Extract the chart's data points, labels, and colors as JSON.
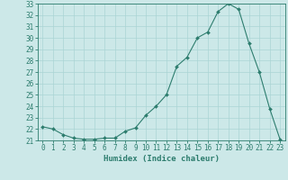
{
  "x": [
    0,
    1,
    2,
    3,
    4,
    5,
    6,
    7,
    8,
    9,
    10,
    11,
    12,
    13,
    14,
    15,
    16,
    17,
    18,
    19,
    20,
    21,
    22,
    23
  ],
  "y": [
    22.2,
    22.0,
    21.5,
    21.2,
    21.1,
    21.1,
    21.2,
    21.2,
    21.8,
    22.1,
    23.2,
    24.0,
    25.0,
    27.5,
    28.3,
    30.0,
    30.5,
    32.3,
    33.0,
    32.5,
    29.5,
    27.0,
    23.8,
    21.1
  ],
  "line_color": "#2d7d6e",
  "marker": "D",
  "marker_size": 2.0,
  "background_color": "#cce8e8",
  "grid_color": "#aad4d4",
  "xlabel": "Humidex (Indice chaleur)",
  "xlabel_fontsize": 6.5,
  "ylim": [
    21,
    33
  ],
  "xlim": [
    -0.5,
    23.5
  ],
  "yticks": [
    21,
    22,
    23,
    24,
    25,
    26,
    27,
    28,
    29,
    30,
    31,
    32,
    33
  ],
  "xticks": [
    0,
    1,
    2,
    3,
    4,
    5,
    6,
    7,
    8,
    9,
    10,
    11,
    12,
    13,
    14,
    15,
    16,
    17,
    18,
    19,
    20,
    21,
    22,
    23
  ],
  "tick_fontsize": 5.5,
  "tick_color": "#2d7d6e",
  "spine_color": "#2d7d6e",
  "linewidth": 0.8
}
